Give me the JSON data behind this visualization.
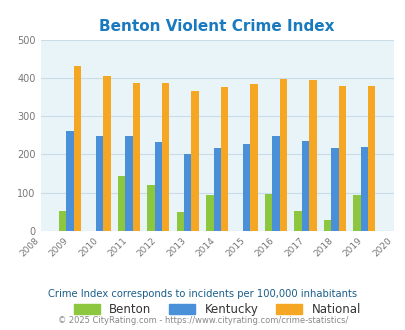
{
  "title": "Benton Violent Crime Index",
  "years": [
    2009,
    2010,
    2011,
    2012,
    2013,
    2014,
    2015,
    2016,
    2017,
    2018,
    2019
  ],
  "benton": [
    52,
    0,
    143,
    120,
    50,
    93,
    0,
    97,
    52,
    28,
    93
  ],
  "kentucky": [
    260,
    247,
    247,
    232,
    201,
    217,
    228,
    247,
    235,
    216,
    219
  ],
  "national": [
    430,
    405,
    387,
    387,
    365,
    376,
    383,
    397,
    394,
    379,
    379
  ],
  "bar_width": 0.25,
  "xlim": [
    2008,
    2020
  ],
  "ylim": [
    0,
    500
  ],
  "yticks": [
    0,
    100,
    200,
    300,
    400,
    500
  ],
  "color_benton": "#8dc63f",
  "color_kentucky": "#4a90d9",
  "color_national": "#f5a623",
  "bg_color": "#e8f4f8",
  "title_color": "#1a7abf",
  "legend_label_color": "#333333",
  "subtitle": "Crime Index corresponds to incidents per 100,000 inhabitants",
  "footer": "© 2025 CityRating.com - https://www.cityrating.com/crime-statistics/",
  "subtitle_color": "#1a5f8a",
  "footer_color": "#888888",
  "grid_color": "#c8dde8"
}
